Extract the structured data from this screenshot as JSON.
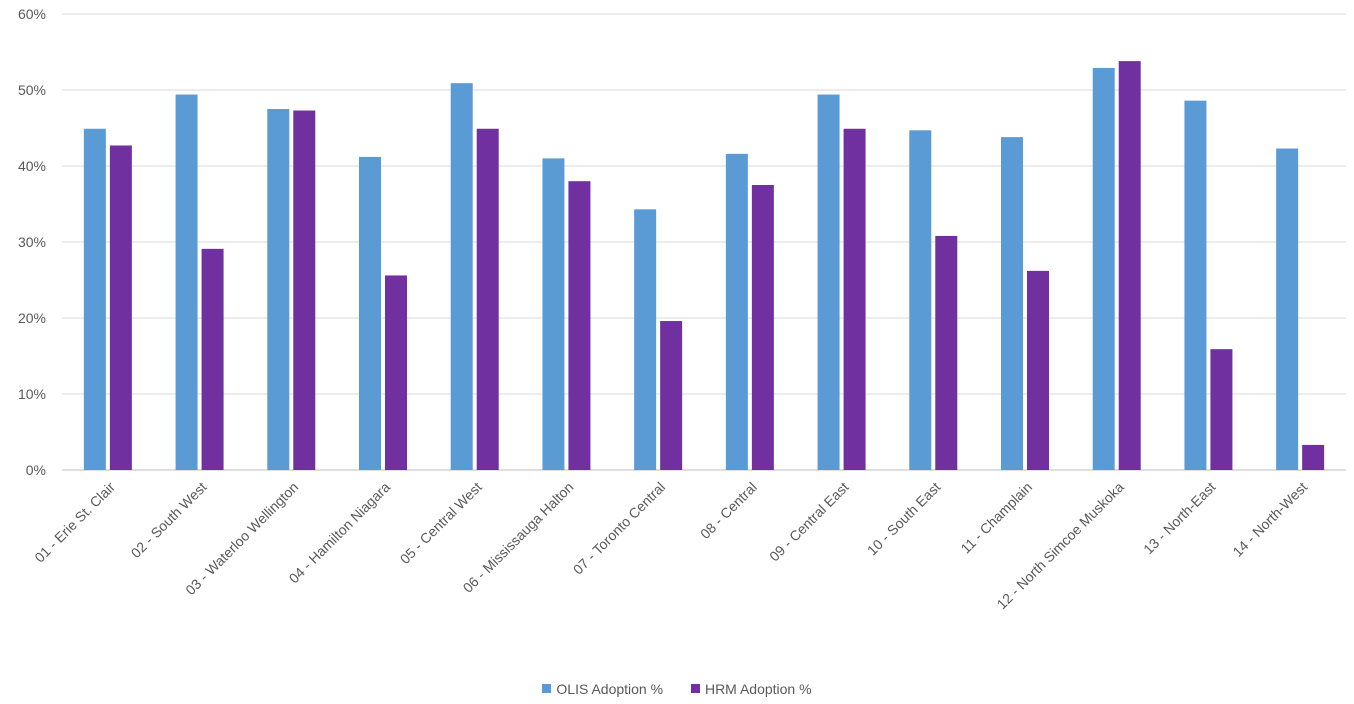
{
  "chart_data": {
    "type": "bar",
    "categories": [
      "01 - Erie St. Clair",
      "02 - South West",
      "03 - Waterloo Wellington",
      "04 - Hamilton Niagara",
      "05 - Central West",
      "06 - Mississauga Halton",
      "07 - Toronto Central",
      "08 - Central",
      "09 - Central East",
      "10 - South East",
      "11 - Champlain",
      "12 - North Simcoe Muskoka",
      "13 - North-East",
      "14 - North-West"
    ],
    "series": [
      {
        "name": "OLIS Adoption %",
        "color": "#5b9bd5",
        "values": [
          44.9,
          49.4,
          47.5,
          41.2,
          50.9,
          41.0,
          34.3,
          41.6,
          49.4,
          44.7,
          43.8,
          52.9,
          48.6,
          42.3
        ]
      },
      {
        "name": "HRM Adoption %",
        "color": "#7030a0",
        "values": [
          42.7,
          29.1,
          47.3,
          25.6,
          44.9,
          38.0,
          19.6,
          37.5,
          44.9,
          30.8,
          26.2,
          53.8,
          15.9,
          3.3
        ]
      }
    ],
    "ylim": [
      0,
      60
    ],
    "yticks": [
      "0%",
      "10%",
      "20%",
      "30%",
      "40%",
      "50%",
      "60%"
    ],
    "grid": true,
    "legend_position": "bottom",
    "title": "",
    "xlabel": "",
    "ylabel": ""
  }
}
